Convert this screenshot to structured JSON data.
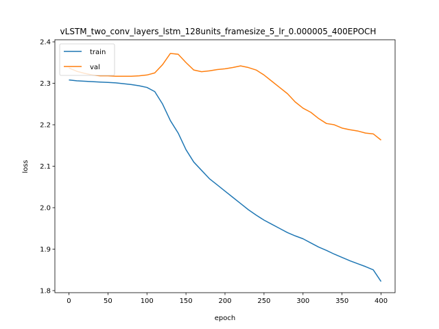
{
  "chart_data": {
    "type": "line",
    "title": "vLSTM_two_conv_layers_lstm_128units_framesize_5_lr_0.000005_400EPOCH",
    "xlabel": "epoch",
    "ylabel": "loss",
    "xlim": [
      -18,
      418
    ],
    "ylim": [
      1.795,
      2.405
    ],
    "xticks": [
      0,
      50,
      100,
      150,
      200,
      250,
      300,
      350,
      400
    ],
    "yticks": [
      1.8,
      1.9,
      2.0,
      2.1,
      2.2,
      2.3,
      2.4
    ],
    "xtick_labels": [
      "0",
      "50",
      "100",
      "150",
      "200",
      "250",
      "300",
      "350",
      "400"
    ],
    "ytick_labels": [
      "1.8",
      "1.9",
      "2.0",
      "2.1",
      "2.2",
      "2.3",
      "2.4"
    ],
    "legend": {
      "placement": "upper-left",
      "entries": [
        "train",
        "val"
      ]
    },
    "grid": false,
    "series": [
      {
        "name": "train",
        "color": "#1f77b4",
        "x": [
          0,
          10,
          20,
          30,
          40,
          50,
          60,
          70,
          80,
          90,
          100,
          110,
          120,
          130,
          140,
          150,
          160,
          170,
          180,
          190,
          200,
          210,
          220,
          230,
          240,
          250,
          260,
          270,
          280,
          290,
          300,
          310,
          320,
          330,
          340,
          350,
          360,
          370,
          380,
          390,
          400
        ],
        "values": [
          2.308,
          2.306,
          2.305,
          2.304,
          2.303,
          2.302,
          2.301,
          2.299,
          2.297,
          2.294,
          2.29,
          2.28,
          2.25,
          2.21,
          2.18,
          2.14,
          2.11,
          2.09,
          2.07,
          2.055,
          2.04,
          2.025,
          2.01,
          1.995,
          1.982,
          1.97,
          1.96,
          1.95,
          1.94,
          1.932,
          1.925,
          1.915,
          1.905,
          1.897,
          1.888,
          1.88,
          1.872,
          1.865,
          1.858,
          1.85,
          1.822
        ]
      },
      {
        "name": "val",
        "color": "#ff7f0e",
        "x": [
          0,
          10,
          20,
          30,
          40,
          50,
          60,
          70,
          80,
          90,
          100,
          110,
          120,
          130,
          140,
          150,
          160,
          170,
          180,
          190,
          200,
          210,
          220,
          230,
          240,
          250,
          260,
          270,
          280,
          290,
          300,
          310,
          320,
          330,
          340,
          350,
          360,
          370,
          380,
          390,
          400
        ],
        "values": [
          2.337,
          2.329,
          2.324,
          2.32,
          2.318,
          2.318,
          2.317,
          2.317,
          2.317,
          2.318,
          2.32,
          2.325,
          2.345,
          2.372,
          2.37,
          2.35,
          2.332,
          2.328,
          2.33,
          2.333,
          2.335,
          2.338,
          2.342,
          2.338,
          2.332,
          2.32,
          2.305,
          2.29,
          2.275,
          2.255,
          2.24,
          2.23,
          2.215,
          2.203,
          2.2,
          2.192,
          2.188,
          2.185,
          2.18,
          2.178,
          2.163
        ]
      }
    ]
  }
}
